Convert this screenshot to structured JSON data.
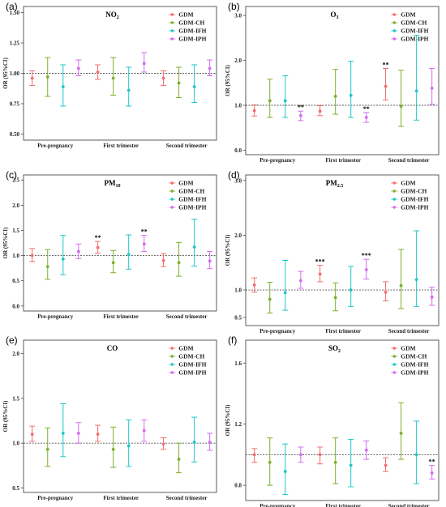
{
  "figure": {
    "legend": [
      "GDM",
      "GDM-CH",
      "GDM-IFH",
      "GDM-IPH"
    ]
  },
  "colors": {
    "GDM": "#f46d6d",
    "GDM-CH": "#7fae2b",
    "GDM-IFH": "#1fc6c6",
    "GDM-IPH": "#d36bf2",
    "reference_line": "#555555"
  },
  "chart_data": [
    {
      "panel": "(a)",
      "title": "NO2",
      "title_base": "NO",
      "title_sub": "2",
      "type": "scatter",
      "error_bars": true,
      "ylabel": "OR (95%CI)",
      "ylim": [
        0.45,
        1.55
      ],
      "yticks": [
        0.5,
        0.75,
        1.0,
        1.25,
        1.5
      ],
      "tick_decimals": 2,
      "reference_line": 1.0,
      "categories": [
        "Pre-pregnancy",
        "First trimester",
        "Second trimester"
      ],
      "series": [
        {
          "name": "GDM",
          "values": [
            0.96,
            1.01,
            0.96
          ],
          "lower": [
            0.9,
            0.95,
            0.9
          ],
          "upper": [
            1.02,
            1.07,
            1.02
          ],
          "sig": [
            "",
            "",
            ""
          ]
        },
        {
          "name": "GDM-CH",
          "values": [
            0.97,
            0.96,
            0.92
          ],
          "lower": [
            0.81,
            0.82,
            0.8
          ],
          "upper": [
            1.13,
            1.13,
            1.05
          ],
          "sig": [
            "",
            "",
            ""
          ]
        },
        {
          "name": "GDM-IFH",
          "values": [
            0.89,
            0.86,
            0.89
          ],
          "lower": [
            0.73,
            0.73,
            0.76
          ],
          "upper": [
            1.07,
            1.05,
            1.07
          ],
          "sig": [
            "",
            "",
            ""
          ]
        },
        {
          "name": "GDM-IPH",
          "values": [
            1.04,
            1.08,
            1.04
          ],
          "lower": [
            0.98,
            1.01,
            0.98
          ],
          "upper": [
            1.11,
            1.17,
            1.11
          ],
          "sig": [
            "",
            "",
            ""
          ]
        }
      ]
    },
    {
      "panel": "(b)",
      "title": "O3",
      "title_base": "O",
      "title_sub": "3",
      "type": "scatter",
      "error_bars": true,
      "ylabel": "OR (95%CI)",
      "ylim": [
        -0.1,
        3.2
      ],
      "yticks": [
        0.0,
        1.0,
        2.0,
        3.0
      ],
      "tick_decimals": 1,
      "reference_line": 1.0,
      "categories": [
        "Pre-pregnancy",
        "First trimester",
        "Second trimester"
      ],
      "series": [
        {
          "name": "GDM",
          "values": [
            0.88,
            0.87,
            1.42
          ],
          "lower": [
            0.76,
            0.77,
            1.12
          ],
          "upper": [
            1.01,
            0.99,
            1.82
          ],
          "sig": [
            "",
            "",
            "**"
          ]
        },
        {
          "name": "GDM-CH",
          "values": [
            1.1,
            1.2,
            0.98
          ],
          "lower": [
            0.73,
            0.8,
            0.53
          ],
          "upper": [
            1.58,
            1.8,
            1.78
          ],
          "sig": [
            "",
            "",
            ""
          ]
        },
        {
          "name": "GDM-IFH",
          "values": [
            1.1,
            1.22,
            1.32
          ],
          "lower": [
            0.73,
            0.73,
            0.67
          ],
          "upper": [
            1.66,
            1.98,
            2.56
          ],
          "sig": [
            "",
            "",
            ""
          ]
        },
        {
          "name": "GDM-IPH",
          "values": [
            0.77,
            0.73,
            1.38
          ],
          "lower": [
            0.66,
            0.62,
            1.02
          ],
          "upper": [
            0.87,
            0.84,
            1.82
          ],
          "sig": [
            "**",
            "**",
            ""
          ]
        }
      ]
    },
    {
      "panel": "(c)",
      "title": "PM10",
      "title_base": "PM",
      "title_sub": "10",
      "type": "scatter",
      "error_bars": true,
      "ylabel": "OR (95%CI)",
      "ylim": [
        -0.1,
        2.6
      ],
      "yticks": [
        0.0,
        0.5,
        1.0,
        1.5,
        2.0,
        2.5
      ],
      "tick_decimals": 1,
      "reference_line": 1.0,
      "categories": [
        "Pre-pregnancy",
        "First trimester",
        "Second trimester"
      ],
      "series": [
        {
          "name": "GDM",
          "values": [
            1.0,
            1.16,
            0.9
          ],
          "lower": [
            0.88,
            1.05,
            0.78
          ],
          "upper": [
            1.14,
            1.28,
            1.04
          ],
          "sig": [
            "",
            "**",
            ""
          ]
        },
        {
          "name": "GDM-CH",
          "values": [
            0.78,
            0.86,
            0.86
          ],
          "lower": [
            0.53,
            0.66,
            0.59
          ],
          "upper": [
            1.12,
            1.1,
            1.26
          ],
          "sig": [
            "",
            "",
            ""
          ]
        },
        {
          "name": "GDM-IFH",
          "values": [
            0.93,
            1.02,
            1.17
          ],
          "lower": [
            0.62,
            0.73,
            0.79
          ],
          "upper": [
            1.4,
            1.41,
            1.72
          ],
          "sig": [
            "",
            "",
            ""
          ]
        },
        {
          "name": "GDM-IPH",
          "values": [
            1.08,
            1.23,
            0.89
          ],
          "lower": [
            0.94,
            1.08,
            0.74
          ],
          "upper": [
            1.23,
            1.4,
            1.08
          ],
          "sig": [
            "",
            "**",
            ""
          ]
        }
      ]
    },
    {
      "panel": "(d)",
      "title": "PM2.5",
      "title_base": "PM",
      "title_sub": "2.5",
      "type": "scatter",
      "error_bars": true,
      "ylabel": "OR (95%CI)",
      "ylim": [
        0.35,
        3.1
      ],
      "yticks": [
        0.5,
        1.0,
        2.0,
        3.0
      ],
      "tick_decimals": 1,
      "reference_line": 1.0,
      "categories": [
        "Pre-pregnancy",
        "First trimester",
        "Second trimester"
      ],
      "series": [
        {
          "name": "GDM",
          "values": [
            1.09,
            1.29,
            0.96
          ],
          "lower": [
            0.96,
            1.15,
            0.8
          ],
          "upper": [
            1.22,
            1.45,
            1.15
          ],
          "sig": [
            "",
            "***",
            ""
          ]
        },
        {
          "name": "GDM-CH",
          "values": [
            0.83,
            0.86,
            1.08
          ],
          "lower": [
            0.58,
            0.62,
            0.66
          ],
          "upper": [
            1.14,
            1.13,
            1.74
          ],
          "sig": [
            "",
            "",
            ""
          ]
        },
        {
          "name": "GDM-IFH",
          "values": [
            0.95,
            1.0,
            1.19
          ],
          "lower": [
            0.63,
            0.7,
            0.7
          ],
          "upper": [
            1.54,
            1.43,
            2.08
          ],
          "sig": [
            "",
            "",
            ""
          ]
        },
        {
          "name": "GDM-IPH",
          "values": [
            1.17,
            1.37,
            0.87
          ],
          "lower": [
            1.03,
            1.2,
            0.72
          ],
          "upper": [
            1.34,
            1.56,
            1.05
          ],
          "sig": [
            "",
            "***",
            ""
          ]
        }
      ]
    },
    {
      "panel": "(e)",
      "title": "CO",
      "title_base": "CO",
      "title_sub": "",
      "type": "scatter",
      "error_bars": true,
      "ylabel": "OR (95%CI)",
      "ylim": [
        0.45,
        2.15
      ],
      "yticks": [
        0.5,
        1.0,
        1.5,
        2.0
      ],
      "tick_decimals": 1,
      "reference_line": 1.0,
      "categories": [
        "Pre-pregnancy",
        "First trimester",
        "Second trimester"
      ],
      "series": [
        {
          "name": "GDM",
          "values": [
            1.1,
            1.1,
            0.99
          ],
          "lower": [
            1.02,
            1.02,
            0.93
          ],
          "upper": [
            1.19,
            1.2,
            1.06
          ],
          "sig": [
            "",
            "",
            ""
          ]
        },
        {
          "name": "GDM-CH",
          "values": [
            0.93,
            0.93,
            0.82
          ],
          "lower": [
            0.74,
            0.73,
            0.67
          ],
          "upper": [
            1.17,
            1.18,
            1.0
          ],
          "sig": [
            "",
            "",
            ""
          ]
        },
        {
          "name": "GDM-IFH",
          "values": [
            1.11,
            0.97,
            1.01
          ],
          "lower": [
            0.85,
            0.74,
            0.79
          ],
          "upper": [
            1.44,
            1.26,
            1.29
          ],
          "sig": [
            "",
            "",
            ""
          ]
        },
        {
          "name": "GDM-IPH",
          "values": [
            1.11,
            1.14,
            1.01
          ],
          "lower": [
            1.0,
            1.02,
            0.92
          ],
          "upper": [
            1.23,
            1.26,
            1.11
          ],
          "sig": [
            "",
            "",
            ""
          ]
        }
      ]
    },
    {
      "panel": "(f)",
      "title": "SO2",
      "title_base": "SO",
      "title_sub": "2",
      "type": "scatter",
      "error_bars": true,
      "ylabel": "OR (95%CI)",
      "ylim": [
        0.7,
        1.75
      ],
      "yticks": [
        0.8,
        1.2,
        1.6
      ],
      "tick_decimals": 1,
      "reference_line": 1.0,
      "categories": [
        "Pre-pregnancy",
        "First trimester",
        "Second trimester"
      ],
      "series": [
        {
          "name": "GDM",
          "values": [
            1.0,
            1.0,
            0.93
          ],
          "lower": [
            0.95,
            0.94,
            0.89
          ],
          "upper": [
            1.04,
            1.05,
            0.98
          ],
          "sig": [
            "",
            "",
            ""
          ]
        },
        {
          "name": "GDM-CH",
          "values": [
            0.95,
            0.95,
            1.14
          ],
          "lower": [
            0.8,
            0.81,
            0.97
          ],
          "upper": [
            1.11,
            1.11,
            1.34
          ],
          "sig": [
            "",
            "",
            ""
          ]
        },
        {
          "name": "GDM-IFH",
          "values": [
            0.89,
            0.93,
            1.0
          ],
          "lower": [
            0.74,
            0.79,
            0.81
          ],
          "upper": [
            1.07,
            1.1,
            1.22
          ],
          "sig": [
            "",
            "",
            ""
          ]
        },
        {
          "name": "GDM-IPH",
          "values": [
            1.0,
            1.03,
            0.88
          ],
          "lower": [
            0.95,
            0.97,
            0.84
          ],
          "upper": [
            1.05,
            1.09,
            0.93
          ],
          "sig": [
            "",
            "",
            "**"
          ]
        }
      ]
    }
  ]
}
